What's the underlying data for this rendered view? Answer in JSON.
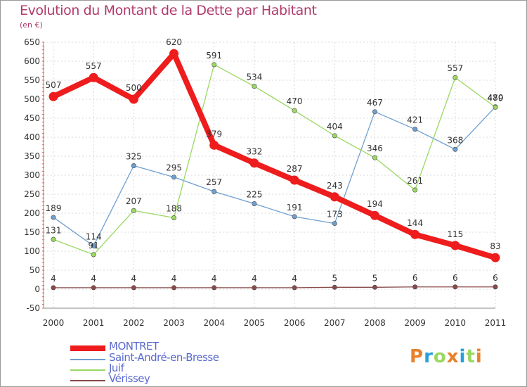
{
  "header": {
    "title": "Evolution du Montant de la Dette par Habitant",
    "subtitle": "(en €)"
  },
  "brand": {
    "logo_text": "Proxiti"
  },
  "chart_data": {
    "type": "line",
    "title": "Evolution du Montant de la Dette par Habitant",
    "subtitle": "(en €)",
    "x": [
      "2000",
      "2001",
      "2002",
      "2003",
      "2004",
      "2005",
      "2006",
      "2007",
      "2008",
      "2009",
      "2010",
      "2011"
    ],
    "ylim": [
      -50,
      650
    ],
    "yticks": [
      -50,
      0,
      50,
      100,
      150,
      200,
      250,
      300,
      350,
      400,
      450,
      500,
      550,
      600,
      650
    ],
    "grid": true,
    "legend_position": "bottom-left",
    "series": [
      {
        "name": "MONTRET",
        "color": "#ee1c1c",
        "emphasis": true,
        "values": [
          507,
          557,
          500,
          620,
          379,
          332,
          287,
          243,
          194,
          144,
          115,
          83
        ]
      },
      {
        "name": "Saint-André-en-Bresse",
        "color": "#6f9fd0",
        "emphasis": false,
        "values": [
          189,
          114,
          325,
          295,
          257,
          225,
          191,
          173,
          467,
          421,
          368,
          480
        ]
      },
      {
        "name": "Juif",
        "color": "#9ad860",
        "emphasis": false,
        "values": [
          131,
          91,
          207,
          188,
          591,
          534,
          470,
          404,
          346,
          261,
          557,
          479
        ]
      },
      {
        "name": "Vérissey",
        "color": "#8a4a4a",
        "emphasis": false,
        "values": [
          4,
          4,
          4,
          4,
          4,
          4,
          4,
          5,
          5,
          6,
          6,
          6
        ]
      }
    ]
  }
}
